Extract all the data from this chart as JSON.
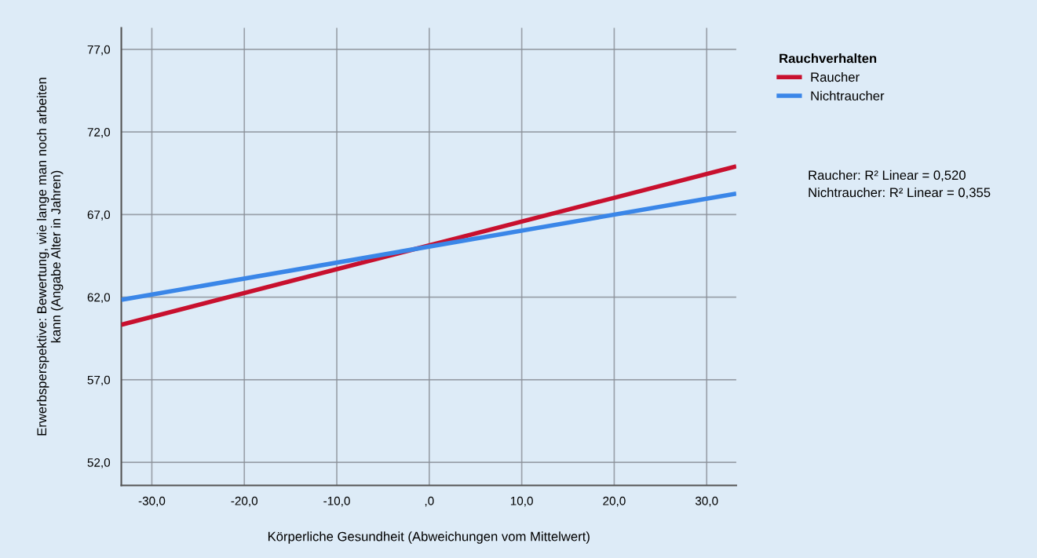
{
  "chart_data": {
    "type": "line",
    "xlabel": "Körperliche Gesundheit (Abweichungen vom Mittelwert)",
    "ylabel": "Erwerbsperspektive: Bewertung, wie lange man noch arbeiten\nkann (Angabe Alter in Jahren)",
    "legend_title": "Rauchverhalten",
    "x": [
      -33.3,
      33.2
    ],
    "series": [
      {
        "name": "Raucher",
        "color": "#c8102e",
        "values": [
          60.33,
          69.92
        ]
      },
      {
        "name": "Nichtraucher",
        "color": "#3a86e8",
        "values": [
          61.84,
          68.27
        ]
      }
    ],
    "xlim": [
      -33.3,
      33.2
    ],
    "ylim": [
      50.6,
      78.3
    ],
    "xticks": [
      {
        "value": -30,
        "label": "-30,0"
      },
      {
        "value": -20,
        "label": "-20,0"
      },
      {
        "value": -10,
        "label": "-10,0"
      },
      {
        "value": 0,
        "label": ",0"
      },
      {
        "value": 10,
        "label": "10,0"
      },
      {
        "value": 20,
        "label": "20,0"
      },
      {
        "value": 30,
        "label": "30,0"
      }
    ],
    "yticks": [
      {
        "value": 52,
        "label": "52,0"
      },
      {
        "value": 57,
        "label": "57,0"
      },
      {
        "value": 62,
        "label": "62,0"
      },
      {
        "value": 67,
        "label": "67,0"
      },
      {
        "value": 72,
        "label": "72,0"
      },
      {
        "value": 77,
        "label": "77,0"
      }
    ],
    "grid": true,
    "legend": "right",
    "marker": "none",
    "line_style": "solid",
    "annotations": [
      "Raucher: R² Linear = 0,520",
      "Nichtraucher: R² Linear = 0,355"
    ]
  }
}
